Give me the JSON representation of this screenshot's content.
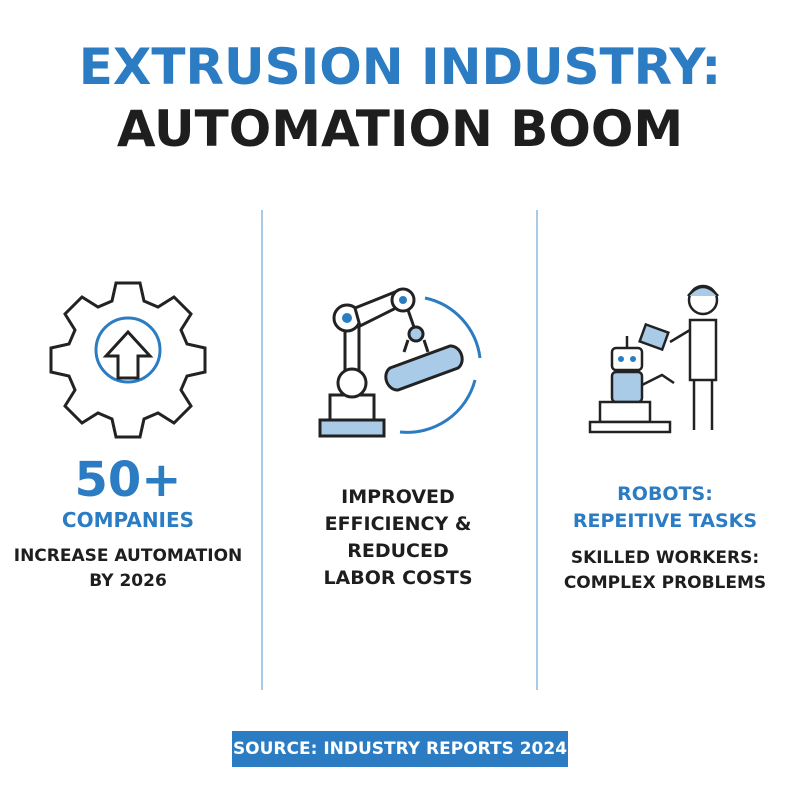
{
  "header": {
    "title_line1": "EXTRUSION INDUSTRY:",
    "title_line2": "AUTOMATION BOOM"
  },
  "columns": [
    {
      "stat": "50+",
      "label": "COMPANIES",
      "text_lines": [
        "INCREASE AUTOMATION",
        "BY 2026"
      ]
    },
    {
      "text_lines": [
        "IMPROVED",
        "EFFICIENCY &",
        "REDUCED",
        "LABOR COSTS"
      ]
    },
    {
      "label_lines": [
        "ROBOTS:",
        "REPEITIVE TASKS"
      ],
      "text_lines": [
        "SKILLED WORKERS:",
        "COMPLEX PROBLEMS"
      ]
    }
  ],
  "footer": {
    "source": "SOURCE: INDUSTRY REPORTS 2024"
  }
}
